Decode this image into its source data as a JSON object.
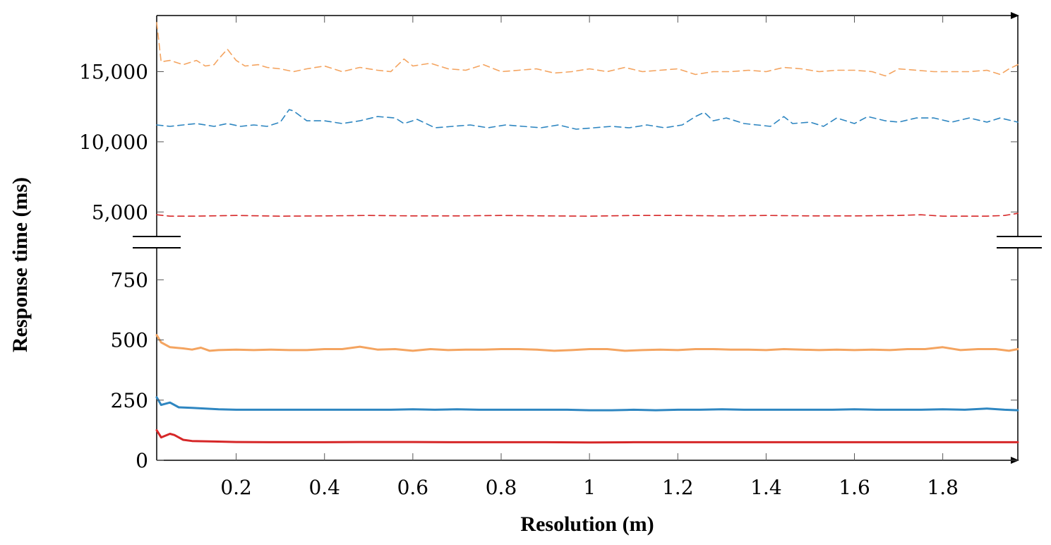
{
  "chart_data": {
    "type": "line",
    "xlabel": "Resolution (m)",
    "ylabel": "Response time (ms)",
    "xlim": [
      0.02,
      1.97
    ],
    "x_ticks": [
      0.2,
      0.4,
      0.6,
      0.8,
      1,
      1.2,
      1.4,
      1.6,
      1.8
    ],
    "x_tick_labels": [
      "0.2",
      "0.4",
      "0.6",
      "0.8",
      "1",
      "1.2",
      "1.4",
      "1.6",
      "1.8"
    ],
    "broken_axis": true,
    "upper_panel": {
      "ylim": [
        3000,
        19000
      ],
      "y_ticks": [
        5000,
        10000,
        15000
      ],
      "y_tick_labels": [
        "5,000",
        "10,000",
        "15,000"
      ]
    },
    "lower_panel": {
      "ylim": [
        0,
        880
      ],
      "y_ticks": [
        0,
        250,
        500,
        750
      ],
      "y_tick_labels": [
        "0",
        "250",
        "500",
        "750"
      ]
    },
    "grid": false,
    "legend": "none",
    "series": [
      {
        "panel": "upper",
        "style": "dashed",
        "color": "#F4A460",
        "x": [
          0.02,
          0.03,
          0.05,
          0.08,
          0.11,
          0.13,
          0.15,
          0.16,
          0.18,
          0.2,
          0.22,
          0.25,
          0.27,
          0.3,
          0.33,
          0.36,
          0.4,
          0.44,
          0.48,
          0.52,
          0.55,
          0.58,
          0.6,
          0.64,
          0.68,
          0.72,
          0.76,
          0.8,
          0.84,
          0.88,
          0.92,
          0.96,
          1.0,
          1.04,
          1.08,
          1.12,
          1.16,
          1.2,
          1.24,
          1.28,
          1.32,
          1.36,
          1.4,
          1.44,
          1.48,
          1.52,
          1.56,
          1.6,
          1.64,
          1.67,
          1.7,
          1.74,
          1.78,
          1.82,
          1.86,
          1.9,
          1.93,
          1.95,
          1.97
        ],
        "y": [
          18500,
          15700,
          15800,
          15500,
          15800,
          15400,
          15500,
          15900,
          16600,
          15800,
          15400,
          15500,
          15300,
          15200,
          15000,
          15200,
          15400,
          15000,
          15300,
          15100,
          15000,
          15900,
          15400,
          15600,
          15200,
          15100,
          15500,
          15000,
          15100,
          15200,
          14900,
          15000,
          15200,
          15000,
          15300,
          15000,
          15100,
          15200,
          14800,
          15000,
          15000,
          15100,
          15000,
          15300,
          15200,
          15000,
          15100,
          15100,
          15000,
          14700,
          15200,
          15100,
          15000,
          15000,
          15000,
          15100,
          14800,
          15200,
          15500
        ]
      },
      {
        "panel": "upper",
        "style": "dashed",
        "color": "#2E86C1",
        "x": [
          0.02,
          0.05,
          0.08,
          0.11,
          0.15,
          0.18,
          0.21,
          0.24,
          0.27,
          0.3,
          0.32,
          0.33,
          0.36,
          0.4,
          0.44,
          0.48,
          0.52,
          0.56,
          0.58,
          0.61,
          0.65,
          0.69,
          0.73,
          0.77,
          0.81,
          0.85,
          0.89,
          0.93,
          0.97,
          1.01,
          1.05,
          1.09,
          1.13,
          1.17,
          1.21,
          1.24,
          1.26,
          1.28,
          1.31,
          1.35,
          1.38,
          1.41,
          1.44,
          1.46,
          1.5,
          1.53,
          1.56,
          1.6,
          1.63,
          1.67,
          1.7,
          1.74,
          1.78,
          1.82,
          1.86,
          1.9,
          1.93,
          1.97
        ],
        "y": [
          11200,
          11100,
          11200,
          11300,
          11100,
          11300,
          11100,
          11200,
          11100,
          11400,
          12300,
          12200,
          11500,
          11500,
          11300,
          11500,
          11800,
          11700,
          11300,
          11600,
          11000,
          11100,
          11200,
          11000,
          11200,
          11100,
          11000,
          11200,
          10900,
          11000,
          11100,
          11000,
          11200,
          11000,
          11200,
          11800,
          12100,
          11500,
          11700,
          11300,
          11200,
          11100,
          11800,
          11300,
          11400,
          11100,
          11700,
          11300,
          11800,
          11500,
          11400,
          11700,
          11700,
          11400,
          11700,
          11400,
          11700,
          11400
        ]
      },
      {
        "panel": "upper",
        "style": "dashed",
        "color": "#D62728",
        "x": [
          0.02,
          0.05,
          0.1,
          0.2,
          0.3,
          0.4,
          0.5,
          0.6,
          0.7,
          0.8,
          0.9,
          1.0,
          1.1,
          1.2,
          1.3,
          1.4,
          1.5,
          1.6,
          1.7,
          1.75,
          1.8,
          1.9,
          1.94,
          1.97
        ],
        "y": [
          4800,
          4700,
          4700,
          4750,
          4700,
          4720,
          4750,
          4720,
          4720,
          4750,
          4720,
          4700,
          4750,
          4750,
          4720,
          4750,
          4720,
          4720,
          4750,
          4800,
          4700,
          4700,
          4750,
          4900
        ]
      },
      {
        "panel": "lower",
        "style": "solid",
        "color": "#F4A460",
        "x": [
          0.02,
          0.03,
          0.05,
          0.08,
          0.1,
          0.12,
          0.14,
          0.16,
          0.2,
          0.24,
          0.28,
          0.32,
          0.36,
          0.4,
          0.44,
          0.48,
          0.52,
          0.56,
          0.6,
          0.64,
          0.68,
          0.72,
          0.76,
          0.8,
          0.84,
          0.88,
          0.92,
          0.96,
          1.0,
          1.04,
          1.08,
          1.12,
          1.16,
          1.2,
          1.24,
          1.28,
          1.32,
          1.36,
          1.4,
          1.44,
          1.48,
          1.52,
          1.56,
          1.6,
          1.64,
          1.68,
          1.72,
          1.76,
          1.8,
          1.84,
          1.88,
          1.92,
          1.95,
          1.97
        ],
        "y": [
          520,
          490,
          470,
          465,
          460,
          468,
          455,
          458,
          460,
          458,
          460,
          458,
          458,
          462,
          462,
          472,
          460,
          462,
          455,
          462,
          458,
          460,
          460,
          462,
          462,
          460,
          455,
          458,
          462,
          462,
          455,
          458,
          460,
          458,
          462,
          462,
          460,
          460,
          458,
          462,
          460,
          458,
          460,
          458,
          460,
          458,
          462,
          462,
          470,
          458,
          462,
          462,
          455,
          462
        ]
      },
      {
        "panel": "lower",
        "style": "solid",
        "color": "#2E86C1",
        "x": [
          0.02,
          0.03,
          0.05,
          0.07,
          0.1,
          0.13,
          0.16,
          0.2,
          0.25,
          0.3,
          0.35,
          0.4,
          0.45,
          0.5,
          0.55,
          0.6,
          0.65,
          0.7,
          0.75,
          0.8,
          0.85,
          0.9,
          0.95,
          1.0,
          1.05,
          1.1,
          1.15,
          1.2,
          1.25,
          1.3,
          1.35,
          1.4,
          1.45,
          1.5,
          1.55,
          1.6,
          1.65,
          1.7,
          1.75,
          1.8,
          1.85,
          1.9,
          1.94,
          1.97
        ],
        "y": [
          262,
          230,
          240,
          220,
          218,
          215,
          212,
          210,
          210,
          210,
          210,
          210,
          210,
          210,
          210,
          212,
          210,
          212,
          210,
          210,
          210,
          210,
          210,
          208,
          208,
          210,
          208,
          210,
          210,
          212,
          210,
          210,
          210,
          210,
          210,
          212,
          210,
          210,
          210,
          212,
          210,
          215,
          210,
          208
        ]
      },
      {
        "panel": "lower",
        "style": "solid",
        "color": "#D62728",
        "x": [
          0.02,
          0.03,
          0.05,
          0.06,
          0.08,
          0.1,
          0.15,
          0.2,
          0.3,
          0.4,
          0.5,
          0.6,
          0.7,
          0.8,
          0.9,
          1.0,
          1.1,
          1.2,
          1.3,
          1.4,
          1.5,
          1.6,
          1.7,
          1.8,
          1.9,
          1.97
        ],
        "y": [
          125,
          95,
          110,
          105,
          85,
          80,
          78,
          76,
          75,
          75,
          76,
          76,
          75,
          75,
          75,
          74,
          75,
          75,
          75,
          75,
          75,
          75,
          75,
          75,
          75,
          75
        ]
      }
    ]
  }
}
